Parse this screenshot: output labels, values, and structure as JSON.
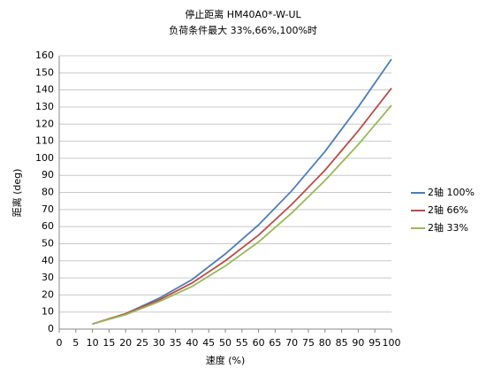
{
  "chart_data": {
    "type": "line",
    "title": "停止距离 HM40A0*-W-UL",
    "subtitle": "负荷条件最大 33%,66%,100%时",
    "x_label": "速度 (%)",
    "y_label": "距离 (deg)",
    "x": [
      10,
      20,
      30,
      40,
      50,
      60,
      70,
      80,
      90,
      100
    ],
    "series": [
      {
        "name": "2轴 100%",
        "color": "#4a7ebb",
        "values": [
          3,
          9,
          18,
          29,
          44,
          61,
          81,
          104,
          130,
          158
        ]
      },
      {
        "name": "2轴 66%",
        "color": "#be4b48",
        "values": [
          3,
          9,
          17,
          27,
          40,
          55,
          73,
          93,
          116,
          141
        ]
      },
      {
        "name": "2轴 33%",
        "color": "#98b954",
        "values": [
          3,
          8.5,
          16,
          25,
          37,
          51,
          68,
          87,
          108,
          131
        ]
      }
    ],
    "xlim": [
      0,
      100
    ],
    "xticks": [
      0,
      5,
      10,
      15,
      20,
      25,
      30,
      35,
      40,
      45,
      50,
      55,
      60,
      65,
      70,
      75,
      80,
      85,
      90,
      95,
      100
    ],
    "ylim": [
      0,
      160
    ],
    "yticks": [
      0,
      10,
      20,
      30,
      40,
      50,
      60,
      70,
      80,
      90,
      100,
      110,
      120,
      130,
      140,
      150,
      160
    ],
    "grid": true,
    "legend": "right"
  }
}
